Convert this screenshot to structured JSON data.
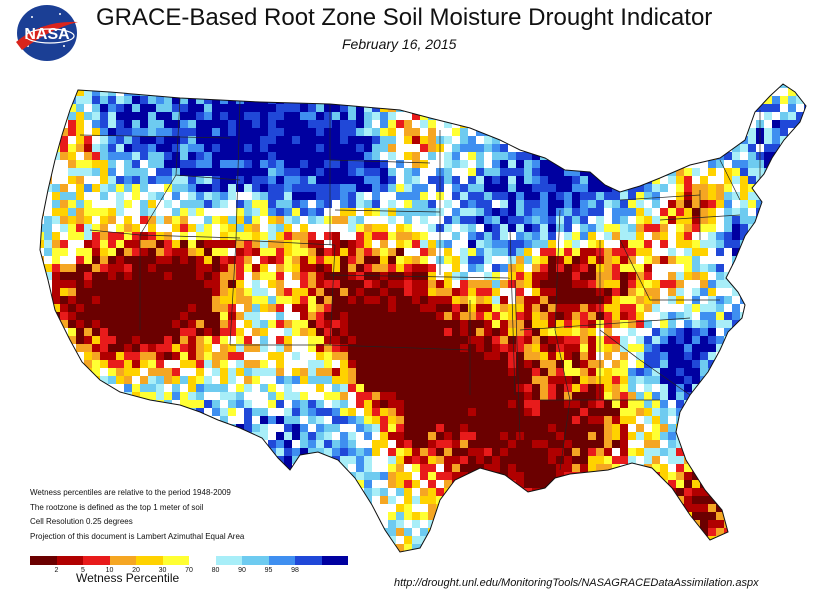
{
  "header": {
    "logo_text": "NASA",
    "title": "GRACE-Based Root Zone Soil  Moisture Drought Indicator",
    "date": "February 16, 2015"
  },
  "notes": [
    "Wetness percentiles are relative to the period 1948-2009",
    "The rootzone is defined as the top 1 meter of soil",
    "Cell Resolution 0.25 degrees",
    "Projection of this document is Lambert Azimuthal Equal Area"
  ],
  "legend": {
    "title": "Wetness Percentile",
    "colors": [
      "#6b0000",
      "#b00000",
      "#e81b1b",
      "#f5a623",
      "#ffd200",
      "#ffff33",
      "#ffffff",
      "#a8eef8",
      "#6ecbf0",
      "#3f8ff0",
      "#2048d8",
      "#0000a0"
    ],
    "ticks": [
      "2",
      "5",
      "10",
      "20",
      "30",
      "70",
      "80",
      "90",
      "95",
      "98"
    ]
  },
  "source_url": "http://drought.unl.edu/MonitoringTools/NASAGRACEDataAssimilation.aspx"
}
